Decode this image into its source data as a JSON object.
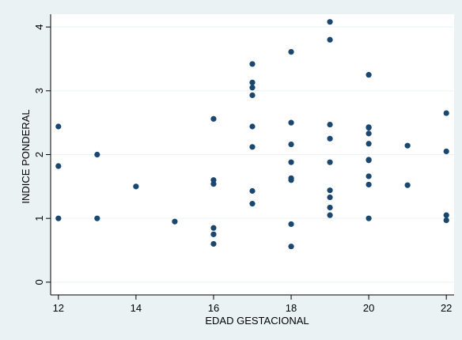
{
  "colors": {
    "outer_background": "#eaf2f3",
    "plot_background": "#ffffff",
    "grid": "#eaf2f3",
    "axis": "#000000",
    "marker": "#1a476f",
    "text": "#000000"
  },
  "chart_data": {
    "type": "scatter",
    "title": "",
    "xlabel": "EDAD GESTACIONAL",
    "ylabel": "INDICE PONDERAL",
    "xlim": [
      11.8,
      22.2
    ],
    "ylim": [
      -0.2,
      4.2
    ],
    "xticks": [
      12,
      14,
      16,
      18,
      20,
      22
    ],
    "yticks": [
      0,
      1,
      2,
      3,
      4
    ],
    "grid": true,
    "legend": "none",
    "points": [
      [
        12,
        2.44
      ],
      [
        12,
        1.82
      ],
      [
        12,
        1.0
      ],
      [
        13,
        2.0
      ],
      [
        13,
        1.0
      ],
      [
        14,
        1.5
      ],
      [
        15,
        0.95
      ],
      [
        16,
        2.56
      ],
      [
        16,
        1.6
      ],
      [
        16,
        1.54
      ],
      [
        16,
        0.85
      ],
      [
        16,
        0.75
      ],
      [
        16,
        0.6
      ],
      [
        17,
        3.42
      ],
      [
        17,
        3.13
      ],
      [
        17,
        3.05
      ],
      [
        17,
        2.93
      ],
      [
        17,
        2.44
      ],
      [
        17,
        2.12
      ],
      [
        17,
        1.43
      ],
      [
        17,
        1.23
      ],
      [
        18,
        3.61
      ],
      [
        18,
        2.5
      ],
      [
        18,
        2.16
      ],
      [
        18,
        1.88
      ],
      [
        18,
        1.63
      ],
      [
        18,
        1.6
      ],
      [
        18,
        0.91
      ],
      [
        18,
        0.56
      ],
      [
        19,
        4.08
      ],
      [
        19,
        3.8
      ],
      [
        19,
        2.47
      ],
      [
        19,
        2.25
      ],
      [
        19,
        1.88
      ],
      [
        19,
        1.44
      ],
      [
        19,
        1.33
      ],
      [
        19,
        1.17
      ],
      [
        19,
        1.05
      ],
      [
        20,
        3.25
      ],
      [
        20,
        2.43
      ],
      [
        20,
        2.42
      ],
      [
        20,
        2.33
      ],
      [
        20,
        2.17
      ],
      [
        20,
        1.92
      ],
      [
        20,
        1.91
      ],
      [
        20,
        1.66
      ],
      [
        20,
        1.53
      ],
      [
        20,
        1.0
      ],
      [
        21,
        2.14
      ],
      [
        21,
        1.52
      ],
      [
        22,
        2.65
      ],
      [
        22,
        2.05
      ],
      [
        22,
        1.05
      ],
      [
        22,
        0.97
      ]
    ]
  }
}
